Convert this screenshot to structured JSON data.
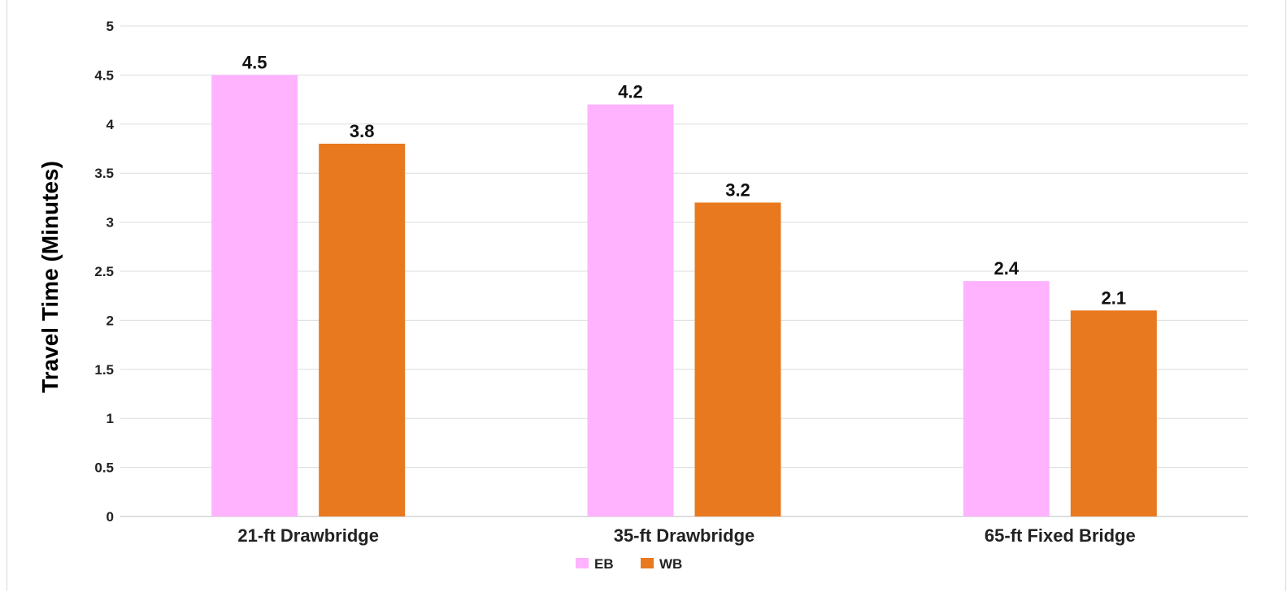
{
  "chart_data": {
    "type": "bar",
    "title": "",
    "xlabel": "",
    "ylabel": "Travel Time (Minutes)",
    "ylim": [
      0,
      5
    ],
    "yticks": [
      "0",
      "0.5",
      "1",
      "1.5",
      "2",
      "2.5",
      "3",
      "3.5",
      "4",
      "4.5",
      "5"
    ],
    "grid": true,
    "legend_position": "bottom",
    "categories": [
      "21-ft Drawbridge",
      "35-ft Drawbridge",
      "65-ft Fixed Bridge"
    ],
    "series": [
      {
        "name": "EB",
        "color": "#ffb3ff",
        "values": [
          4.5,
          4.2,
          2.4
        ],
        "labels": [
          "4.5",
          "4.2",
          "2.4"
        ]
      },
      {
        "name": "WB",
        "color": "#e8791e",
        "values": [
          3.8,
          3.2,
          2.1
        ],
        "labels": [
          "3.8",
          "3.2",
          "2.1"
        ]
      }
    ]
  }
}
